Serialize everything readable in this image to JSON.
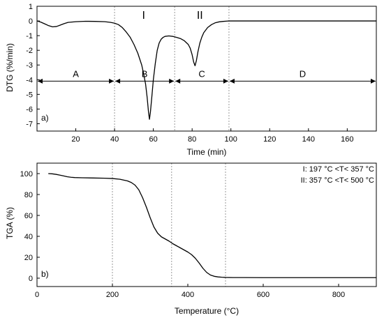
{
  "colors": {
    "line": "#000000",
    "guide": "#9a9a9a",
    "arrow": "#000000"
  },
  "chart_data": [
    {
      "type": "line",
      "panel_label": "a)",
      "xlabel": "Time (min)",
      "ylabel": "DTG (%/min)",
      "xlim": [
        0,
        175
      ],
      "ylim": [
        -7.5,
        1
      ],
      "xticks": [
        20,
        40,
        60,
        80,
        100,
        120,
        140,
        160
      ],
      "yticks": [
        1,
        0,
        -1,
        -2,
        -3,
        -4,
        -5,
        -6,
        -7
      ],
      "grid": false,
      "peak_labels": [
        {
          "text": "I",
          "x": 55
        },
        {
          "text": "II",
          "x": 84
        }
      ],
      "vertical_guides": [
        40,
        71,
        99
      ],
      "regions": [
        {
          "label": "A",
          "from": 0,
          "to": 40
        },
        {
          "label": "B",
          "from": 40,
          "to": 71
        },
        {
          "label": "C",
          "from": 71,
          "to": 99
        },
        {
          "label": "D",
          "from": 99,
          "to": 175
        }
      ],
      "region_arrow_y": -4.1,
      "series": [
        {
          "x": [
            0,
            2,
            4,
            6,
            8,
            10,
            12,
            14,
            16,
            20,
            25,
            30,
            35,
            38,
            40,
            42,
            44,
            46,
            48,
            50,
            52,
            54,
            55,
            56,
            56.8,
            57.5,
            58,
            58.5,
            59.2,
            60,
            61,
            62,
            63,
            64,
            65,
            66,
            68,
            70,
            72,
            74,
            76,
            78,
            79,
            80,
            80.8,
            81.5,
            82.2,
            83,
            84,
            85,
            86,
            88,
            90,
            92,
            94,
            96,
            98,
            99,
            100,
            110,
            120,
            130,
            140,
            150,
            160,
            170,
            175
          ],
          "y": [
            0,
            -0.08,
            -0.2,
            -0.32,
            -0.4,
            -0.38,
            -0.28,
            -0.18,
            -0.1,
            -0.05,
            -0.02,
            -0.03,
            -0.05,
            -0.1,
            -0.15,
            -0.25,
            -0.45,
            -0.75,
            -1.1,
            -1.6,
            -2.2,
            -3.0,
            -3.6,
            -4.3,
            -5.2,
            -6.2,
            -6.7,
            -6.2,
            -5.2,
            -4.0,
            -2.9,
            -2.0,
            -1.5,
            -1.25,
            -1.12,
            -1.05,
            -1.02,
            -1.05,
            -1.12,
            -1.2,
            -1.35,
            -1.6,
            -1.85,
            -2.3,
            -2.8,
            -3.05,
            -2.7,
            -2.1,
            -1.5,
            -1.1,
            -0.8,
            -0.45,
            -0.25,
            -0.12,
            -0.06,
            -0.03,
            -0.01,
            0,
            0,
            0,
            0,
            0,
            0,
            0,
            0,
            0,
            0
          ]
        }
      ]
    },
    {
      "type": "line",
      "panel_label": "b)",
      "xlabel": "Temperature (°C)",
      "ylabel": "TGA (%)",
      "xlim": [
        0,
        900
      ],
      "ylim": [
        -8,
        110
      ],
      "xticks": [
        0,
        200,
        400,
        600,
        800
      ],
      "yticks": [
        0,
        20,
        40,
        60,
        80,
        100
      ],
      "grid": false,
      "vertical_guides": [
        200,
        357,
        500
      ],
      "annotations": [
        "I: 197 °C <T< 357 °C",
        "II: 357 °C <T< 500 °C"
      ],
      "series": [
        {
          "x": [
            30,
            40,
            50,
            60,
            70,
            80,
            90,
            100,
            120,
            150,
            180,
            200,
            220,
            240,
            250,
            260,
            270,
            280,
            290,
            300,
            310,
            320,
            330,
            340,
            350,
            360,
            370,
            380,
            390,
            400,
            410,
            420,
            430,
            440,
            450,
            460,
            470,
            480,
            490,
            500,
            520,
            550,
            600,
            700,
            800,
            900
          ],
          "y": [
            100,
            99.8,
            99.3,
            98.6,
            97.8,
            97.0,
            96.5,
            96.2,
            96.0,
            95.8,
            95.6,
            95.3,
            94.6,
            93.0,
            91.5,
            89.0,
            84.5,
            77.0,
            68.0,
            58.0,
            49.0,
            43.0,
            39.5,
            37.5,
            35.5,
            33.0,
            31.0,
            29.0,
            27.0,
            25.0,
            22.5,
            19.0,
            14.5,
            9.5,
            5.5,
            3.0,
            1.8,
            1.2,
            0.9,
            0.7,
            0.6,
            0.6,
            0.5,
            0.5,
            0.5,
            0.5
          ]
        }
      ]
    }
  ]
}
